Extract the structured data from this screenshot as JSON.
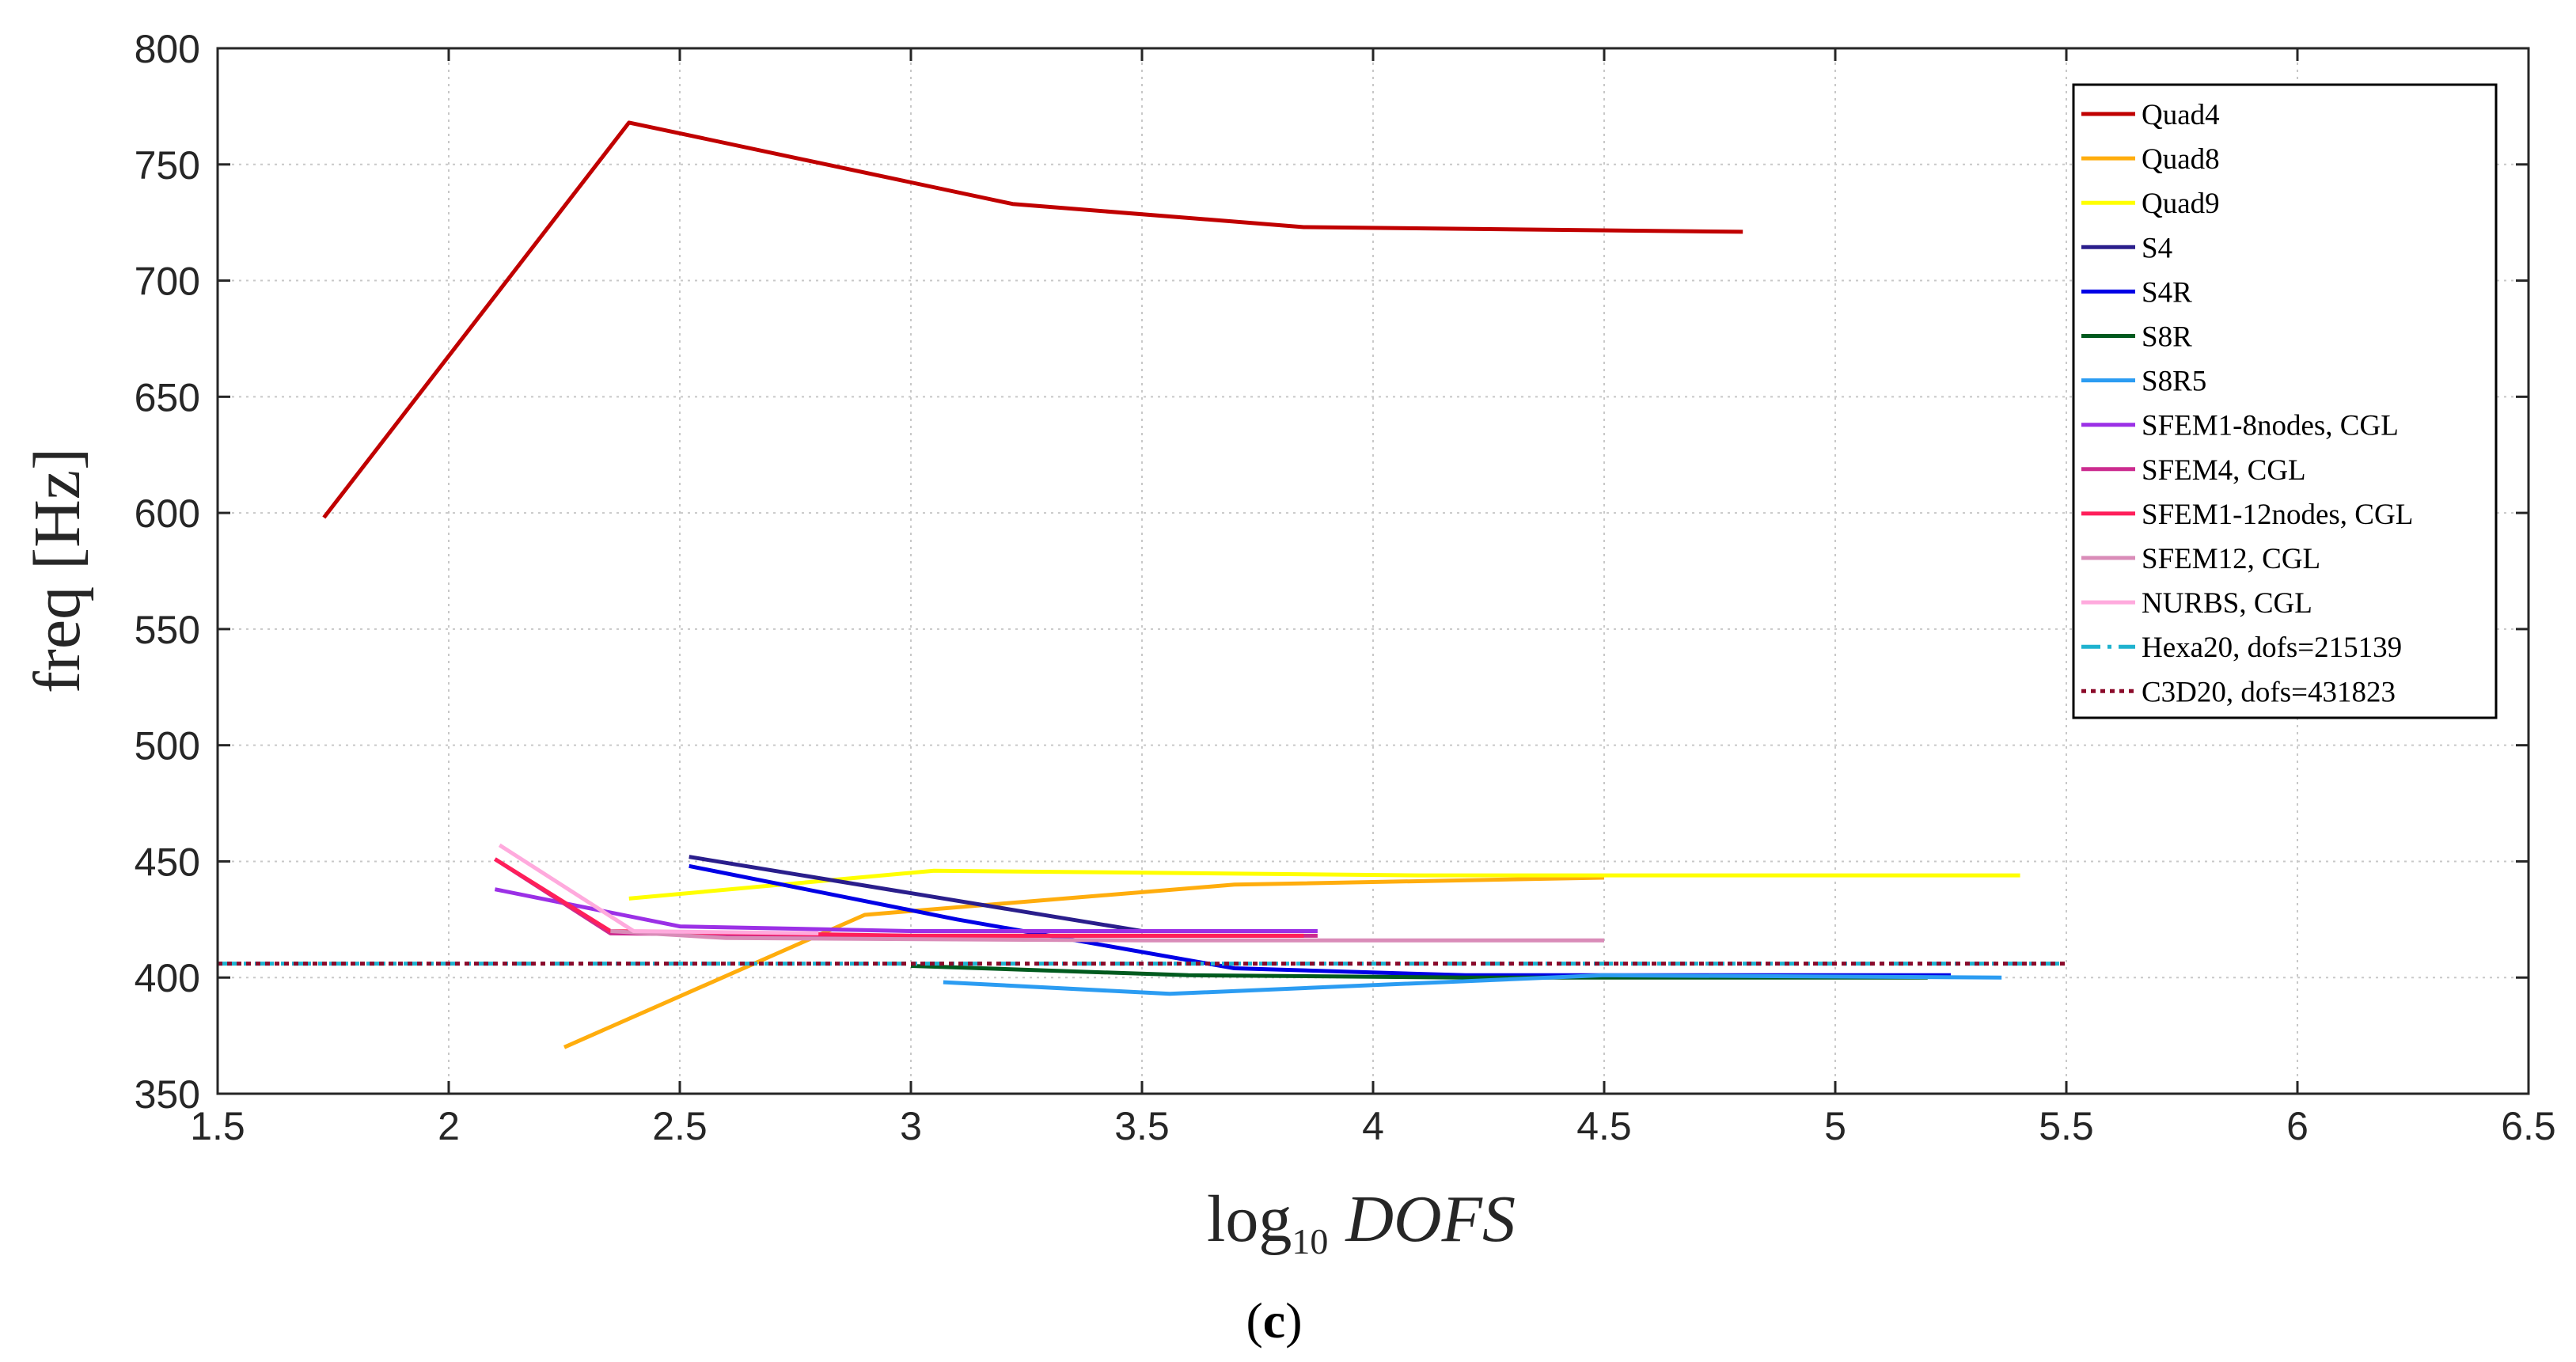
{
  "chart_data": {
    "type": "line",
    "xlabel_prefix": "log",
    "xlabel_sub": "10",
    "xlabel_var": "DOFS",
    "ylabel": "freq [Hz]",
    "caption_open": "(",
    "caption_letter": "c",
    "caption_close": ")",
    "xlim": [
      1.5,
      6.5
    ],
    "ylim": [
      350,
      800
    ],
    "xticks": [
      1.5,
      2,
      2.5,
      3,
      3.5,
      4,
      4.5,
      5,
      5.5,
      6,
      6.5
    ],
    "yticks": [
      350,
      400,
      450,
      500,
      550,
      600,
      650,
      700,
      750,
      800
    ],
    "xtick_labels": [
      "1.5",
      "2",
      "2.5",
      "3",
      "3.5",
      "4",
      "4.5",
      "5",
      "5.5",
      "6",
      "6.5"
    ],
    "ytick_labels": [
      "350",
      "400",
      "450",
      "500",
      "550",
      "600",
      "650",
      "700",
      "750",
      "800"
    ],
    "grid": true,
    "legend_position": "top-right",
    "series": [
      {
        "name": "Quad4",
        "color": "#c00000",
        "dash": "solid",
        "x": [
          1.73,
          2.39,
          3.22,
          3.85,
          4.8
        ],
        "y": [
          598,
          768,
          733,
          723,
          721
        ]
      },
      {
        "name": "Quad8",
        "color": "#ffad0d",
        "dash": "solid",
        "x": [
          2.25,
          2.9,
          3.7,
          4.5
        ],
        "y": [
          370,
          427,
          440,
          443
        ]
      },
      {
        "name": "Quad9",
        "color": "#ffff00",
        "dash": "solid",
        "x": [
          2.39,
          3.05,
          4.1,
          5.4
        ],
        "y": [
          434,
          446,
          444,
          444
        ]
      },
      {
        "name": "S4",
        "color": "#2a1e8c",
        "dash": "solid",
        "x": [
          2.52,
          3.5,
          3.85
        ],
        "y": [
          452,
          420,
          420
        ]
      },
      {
        "name": "S4R",
        "color": "#0000e6",
        "dash": "solid",
        "x": [
          2.52,
          3.1,
          3.7,
          4.2,
          5.25
        ],
        "y": [
          448,
          425,
          404,
          401,
          401
        ]
      },
      {
        "name": "S8R",
        "color": "#005a1e",
        "dash": "solid",
        "x": [
          3.0,
          3.6,
          4.2,
          5.2
        ],
        "y": [
          405,
          401,
          400,
          400
        ]
      },
      {
        "name": "S8R5",
        "color": "#2b9cf2",
        "dash": "solid",
        "x": [
          3.07,
          3.56,
          4.5,
          5.36
        ],
        "y": [
          398,
          393,
          401,
          400
        ]
      },
      {
        "name": "SFEM1-8nodes, CGL",
        "color": "#9b30e6",
        "dash": "solid",
        "x": [
          2.1,
          2.5,
          3.0,
          3.88
        ],
        "y": [
          438,
          422,
          420,
          420
        ]
      },
      {
        "name": "SFEM4, CGL",
        "color": "#cc2b8f",
        "dash": "solid",
        "x": [
          2.1,
          2.35,
          3.0,
          3.88
        ],
        "y": [
          451,
          419,
          418,
          418
        ]
      },
      {
        "name": "SFEM1-12nodes, CGL",
        "color": "#ff1f5a",
        "dash": "solid",
        "x": [
          2.1,
          2.35,
          3.0,
          3.85
        ],
        "y": [
          451,
          420,
          418,
          418
        ]
      },
      {
        "name": "SFEM12, CGL",
        "color": "#d98cb8",
        "dash": "solid",
        "x": [
          2.35,
          2.6,
          3.5,
          4.5
        ],
        "y": [
          420,
          417,
          416,
          416
        ]
      },
      {
        "name": "NURBS, CGL",
        "color": "#ffaadd",
        "dash": "solid",
        "x": [
          2.11,
          2.4,
          2.8
        ],
        "y": [
          457,
          420,
          419
        ]
      },
      {
        "name": "Hexa20, dofs=215139",
        "color": "#1fb2cf",
        "dash": "dashdot",
        "x": [
          1.5,
          5.5
        ],
        "y": [
          406,
          406
        ]
      },
      {
        "name": "C3D20, dofs=431823",
        "color": "#8b0a2a",
        "dash": "dotted",
        "x": [
          1.5,
          5.5
        ],
        "y": [
          406,
          406
        ]
      }
    ]
  }
}
